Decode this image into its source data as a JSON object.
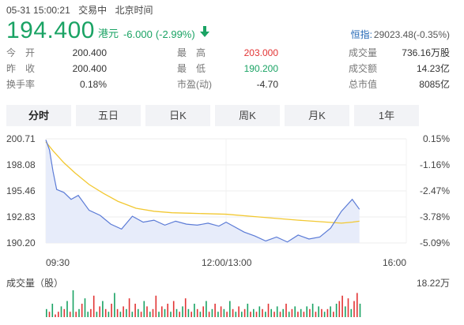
{
  "status_bar": {
    "datetime": "05-31 15:00:21",
    "trade_status": "交易中",
    "timezone": "北京时间"
  },
  "quote": {
    "price": "194.400",
    "currency": "港元",
    "change": "-6.000",
    "change_pct": "(-2.99%)",
    "direction_icon": "arrow-down-icon",
    "color": "#1aa364"
  },
  "index": {
    "label": "恒指:",
    "value": "29023.48(-0.35%)"
  },
  "stats": {
    "open": {
      "label": "今　开",
      "value": "200.400"
    },
    "prev_close": {
      "label": "昨　收",
      "value": "200.400"
    },
    "turnover_rate": {
      "label": "换手率",
      "value": "0.18%"
    },
    "high": {
      "label": "最　高",
      "value": "203.000"
    },
    "low": {
      "label": "最　低",
      "value": "190.200"
    },
    "pe": {
      "label": "市盈(动)",
      "value": "-4.70"
    },
    "volume": {
      "label": "成交量",
      "value": "736.16万股"
    },
    "amount": {
      "label": "成交额",
      "value": "14.23亿"
    },
    "market_cap": {
      "label": "总市值",
      "value": "8085亿"
    }
  },
  "tabs": [
    {
      "label": "分时",
      "active": true
    },
    {
      "label": "五日",
      "active": false
    },
    {
      "label": "日K",
      "active": false
    },
    {
      "label": "周K",
      "active": false
    },
    {
      "label": "月K",
      "active": false
    },
    {
      "label": "1年",
      "active": false
    }
  ],
  "chart_data": {
    "type": "line",
    "y_price_ticks": [
      "200.71",
      "198.08",
      "195.46",
      "192.83",
      "190.20"
    ],
    "y_pct_ticks": [
      "0.15%",
      "-1.16%",
      "-2.47%",
      "-3.78%",
      "-5.09%"
    ],
    "ylim": [
      190.2,
      200.71
    ],
    "x_ticks": [
      "09:30",
      "12:00/13:00",
      "16:00"
    ],
    "colors": {
      "price": "#5b7bd6",
      "avg": "#f2c831",
      "area": "#e7ecfa",
      "up": "#e23434",
      "down": "#1aa364"
    },
    "series": [
      {
        "x": [
          0.0,
          0.01,
          0.02,
          0.03,
          0.05,
          0.07,
          0.09,
          0.12,
          0.15,
          0.18,
          0.21,
          0.24,
          0.27,
          0.3,
          0.33,
          0.36,
          0.39,
          0.42,
          0.45,
          0.48,
          0.5,
          0.52,
          0.55,
          0.58,
          0.61,
          0.64,
          0.67,
          0.7,
          0.73,
          0.76,
          0.79,
          0.82,
          0.85,
          0.87
        ],
        "values": [
          200.6,
          199.6,
          197.4,
          195.6,
          195.3,
          194.6,
          195.0,
          193.5,
          193.0,
          192.1,
          191.6,
          192.9,
          192.3,
          192.5,
          192.0,
          192.4,
          192.1,
          192.0,
          192.2,
          191.9,
          192.3,
          191.9,
          191.3,
          190.9,
          190.4,
          190.8,
          190.3,
          191.0,
          190.6,
          190.8,
          191.7,
          193.4,
          194.6,
          193.6
        ]
      },
      {
        "x": [
          0.0,
          0.02,
          0.05,
          0.08,
          0.12,
          0.16,
          0.2,
          0.25,
          0.3,
          0.35,
          0.4,
          0.5,
          0.6,
          0.7,
          0.78,
          0.82,
          0.85,
          0.87
        ],
        "values": [
          200.4,
          199.5,
          198.3,
          197.3,
          196.1,
          195.2,
          194.4,
          193.7,
          193.4,
          193.25,
          193.2,
          193.1,
          192.8,
          192.5,
          192.3,
          192.2,
          192.3,
          192.4
        ]
      }
    ],
    "volume_axis_max": "18.22万",
    "volume_title": "成交量（股）",
    "volume": [
      3,
      2,
      5,
      1,
      2,
      4,
      3,
      6,
      2,
      10,
      2,
      3,
      5,
      7,
      2,
      3,
      8,
      2,
      4,
      6,
      3,
      2,
      5,
      9,
      3,
      2,
      4,
      3,
      7,
      2,
      5,
      3,
      2,
      6,
      4,
      2,
      3,
      8,
      2,
      4,
      3,
      5,
      2,
      6,
      3,
      2,
      4,
      7,
      3,
      2,
      5,
      3,
      2,
      4,
      6,
      2,
      3,
      5,
      2,
      4,
      3,
      2,
      6,
      3,
      2,
      4,
      2,
      3,
      5,
      2,
      3,
      2,
      4,
      3,
      2,
      5,
      3,
      2,
      4,
      2,
      3,
      5,
      2,
      3,
      4,
      2,
      3,
      2,
      4,
      3,
      5,
      2,
      4,
      3,
      2,
      3,
      4,
      2,
      5,
      6,
      8,
      4,
      7,
      3,
      6,
      9,
      5
    ],
    "volume_up": [
      false,
      true,
      false,
      true,
      true,
      false,
      true,
      false,
      true,
      false,
      true,
      false,
      true,
      false,
      false,
      true,
      true,
      false,
      true,
      false,
      true,
      false,
      true,
      false,
      true,
      false,
      true,
      false,
      true,
      false,
      true,
      false,
      true,
      false,
      true,
      false,
      true,
      true,
      false,
      true,
      false,
      true,
      false,
      true,
      false,
      true,
      false,
      true,
      false,
      true,
      false,
      true,
      false,
      true,
      false,
      true,
      false,
      true,
      false,
      true,
      false,
      true,
      false,
      true,
      false,
      true,
      false,
      true,
      false,
      true,
      false,
      true,
      false,
      true,
      false,
      true,
      false,
      true,
      false,
      true,
      false,
      true,
      false,
      true,
      false,
      true,
      false,
      true,
      false,
      true,
      false,
      true,
      false,
      true,
      false,
      true,
      false,
      true,
      false,
      true,
      true,
      false,
      true,
      false,
      true,
      true,
      false
    ]
  }
}
